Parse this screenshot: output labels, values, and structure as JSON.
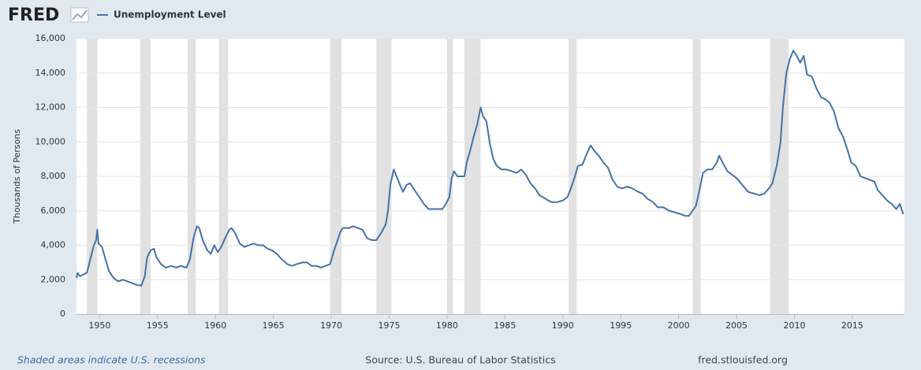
{
  "chart_data": {
    "type": "line",
    "logo": "FRED",
    "ylabel": "Thousands of Persons",
    "recession_note": "Shaded areas indicate U.S. recessions",
    "source": "Source: U.S. Bureau of Labor Statistics",
    "site": "fred.stlouisfed.org",
    "xlim": [
      1948,
      2019.5
    ],
    "ylim": [
      0,
      16000
    ],
    "xticks": [
      1950,
      1955,
      1960,
      1965,
      1970,
      1975,
      1980,
      1985,
      1990,
      1995,
      2000,
      2005,
      2010,
      2015
    ],
    "yticks": [
      0,
      {
        "value": 2000,
        "label": "2,000"
      },
      {
        "value": 4000,
        "label": "4,000"
      },
      {
        "value": 6000,
        "label": "6,000"
      },
      {
        "value": 8000,
        "label": "8,000"
      },
      {
        "value": 10000,
        "label": "10,000"
      },
      {
        "value": 12000,
        "label": "12,000"
      },
      {
        "value": 14000,
        "label": "14,000"
      },
      {
        "value": 16000,
        "label": "16,000"
      }
    ],
    "grid": true,
    "recession_color": "#e1e1e1",
    "recessions": [
      [
        1948.9,
        1949.8
      ],
      [
        1953.5,
        1954.4
      ],
      [
        1957.6,
        1958.3
      ],
      [
        1960.3,
        1961.1
      ],
      [
        1969.9,
        1970.9
      ],
      [
        1973.9,
        1975.2
      ],
      [
        1980.0,
        1980.5
      ],
      [
        1981.5,
        1982.9
      ],
      [
        1990.5,
        1991.2
      ],
      [
        2001.2,
        2001.9
      ],
      [
        2007.9,
        2009.5
      ]
    ],
    "x": [
      1948.0,
      1948.1,
      1948.3,
      1948.6,
      1948.9,
      1949.2,
      1949.5,
      1949.7,
      1949.8,
      1949.9,
      1950.2,
      1950.5,
      1950.8,
      1951.2,
      1951.6,
      1952.0,
      1952.4,
      1952.8,
      1953.2,
      1953.6,
      1953.9,
      1954.1,
      1954.4,
      1954.7,
      1954.9,
      1955.3,
      1955.7,
      1956.2,
      1956.6,
      1957.0,
      1957.5,
      1957.8,
      1958.1,
      1958.4,
      1958.6,
      1958.9,
      1959.3,
      1959.6,
      1959.9,
      1960.2,
      1960.5,
      1960.9,
      1961.2,
      1961.4,
      1961.7,
      1962.1,
      1962.5,
      1962.9,
      1963.3,
      1963.7,
      1964.1,
      1964.5,
      1964.9,
      1965.3,
      1965.7,
      1966.2,
      1966.6,
      1967.0,
      1967.5,
      1967.9,
      1968.3,
      1968.7,
      1969.1,
      1969.5,
      1969.9,
      1970.2,
      1970.5,
      1970.8,
      1971.0,
      1971.5,
      1971.9,
      1972.3,
      1972.7,
      1973.1,
      1973.5,
      1973.9,
      1974.3,
      1974.7,
      1974.9,
      1975.1,
      1975.4,
      1975.7,
      1976.0,
      1976.2,
      1976.5,
      1976.8,
      1977.2,
      1977.6,
      1978.0,
      1978.4,
      1978.8,
      1979.2,
      1979.6,
      1979.9,
      1980.2,
      1980.4,
      1980.6,
      1980.9,
      1981.2,
      1981.5,
      1981.7,
      1982.0,
      1982.3,
      1982.6,
      1982.9,
      1983.1,
      1983.4,
      1983.7,
      1984.0,
      1984.3,
      1984.7,
      1985.1,
      1985.6,
      1986.0,
      1986.4,
      1986.8,
      1987.2,
      1987.6,
      1988.0,
      1988.5,
      1989.0,
      1989.5,
      1990.0,
      1990.4,
      1990.7,
      1991.0,
      1991.3,
      1991.7,
      1992.0,
      1992.4,
      1992.7,
      1993.1,
      1993.5,
      1993.9,
      1994.3,
      1994.7,
      1995.1,
      1995.6,
      1996.0,
      1996.5,
      1996.9,
      1997.3,
      1997.8,
      1998.2,
      1998.7,
      1999.2,
      1999.7,
      2000.2,
      2000.6,
      2000.9,
      2001.2,
      2001.5,
      2001.8,
      2002.1,
      2002.5,
      2002.9,
      2003.3,
      2003.5,
      2003.8,
      2004.2,
      2004.6,
      2005.0,
      2005.5,
      2006.0,
      2006.5,
      2007.0,
      2007.4,
      2007.8,
      2008.1,
      2008.5,
      2008.8,
      2009.0,
      2009.3,
      2009.6,
      2009.9,
      2010.2,
      2010.5,
      2010.8,
      2011.1,
      2011.5,
      2011.9,
      2012.3,
      2012.6,
      2013.0,
      2013.4,
      2013.8,
      2014.2,
      2014.6,
      2014.9,
      2015.3,
      2015.7,
      2016.1,
      2016.5,
      2016.9,
      2017.2,
      2017.6,
      2018.0,
      2018.4,
      2018.8,
      2019.1,
      2019.4
    ],
    "series": [
      {
        "name": "Unemployment Level",
        "color": "#4572a7",
        "values": [
          2100,
          2400,
          2200,
          2300,
          2400,
          3200,
          4000,
          4300,
          4900,
          4100,
          3900,
          3200,
          2500,
          2100,
          1900,
          2000,
          1900,
          1800,
          1700,
          1650,
          2200,
          3300,
          3700,
          3800,
          3300,
          2900,
          2700,
          2800,
          2700,
          2800,
          2700,
          3200,
          4400,
          5100,
          5000,
          4300,
          3700,
          3500,
          4000,
          3600,
          3900,
          4500,
          4900,
          5000,
          4700,
          4100,
          3900,
          4000,
          4100,
          4000,
          4000,
          3800,
          3700,
          3500,
          3200,
          2900,
          2800,
          2900,
          3000,
          3000,
          2800,
          2800,
          2700,
          2800,
          2900,
          3600,
          4200,
          4800,
          5000,
          5000,
          5100,
          5000,
          4900,
          4400,
          4300,
          4300,
          4700,
          5200,
          6000,
          7500,
          8400,
          7900,
          7400,
          7100,
          7500,
          7600,
          7200,
          6800,
          6400,
          6100,
          6100,
          6100,
          6100,
          6400,
          6800,
          7900,
          8300,
          8000,
          8000,
          8000,
          8800,
          9500,
          10300,
          11000,
          12000,
          11500,
          11200,
          9900,
          9000,
          8600,
          8400,
          8400,
          8300,
          8200,
          8400,
          8100,
          7600,
          7300,
          6900,
          6700,
          6500,
          6500,
          6600,
          6800,
          7300,
          7900,
          8600,
          8700,
          9200,
          9800,
          9500,
          9200,
          8800,
          8500,
          7800,
          7400,
          7300,
          7400,
          7300,
          7100,
          7000,
          6700,
          6500,
          6200,
          6200,
          6000,
          5900,
          5800,
          5700,
          5700,
          6000,
          6300,
          7200,
          8200,
          8400,
          8400,
          8800,
          9200,
          8800,
          8300,
          8100,
          7900,
          7500,
          7100,
          7000,
          6900,
          7000,
          7300,
          7600,
          8700,
          10000,
          12000,
          14000,
          14800,
          15300,
          15000,
          14600,
          15000,
          13900,
          13800,
          13100,
          12600,
          12500,
          12300,
          11800,
          10800,
          10300,
          9500,
          8800,
          8600,
          8000,
          7900,
          7800,
          7700,
          7200,
          6900,
          6600,
          6400,
          6100,
          6400,
          5800
        ]
      }
    ]
  }
}
